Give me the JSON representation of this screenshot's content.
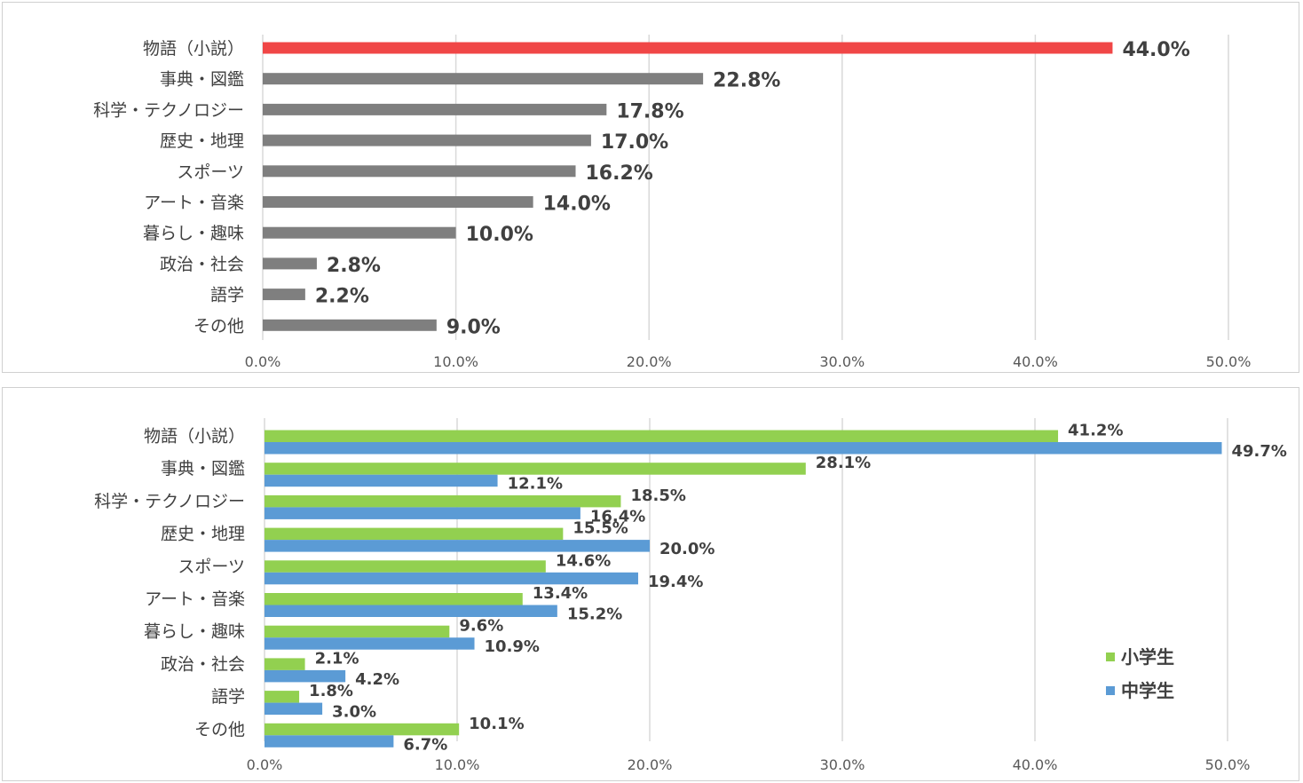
{
  "chart_data": [
    {
      "type": "bar",
      "orientation": "horizontal",
      "categories": [
        "物語（小説）",
        "事典・図鑑",
        "科学・テクノロジー",
        "歴史・地理",
        "スポーツ",
        "アート・音楽",
        "暮らし・趣味",
        "政治・社会",
        "語学",
        "その他"
      ],
      "values": [
        44.0,
        22.8,
        17.8,
        17.0,
        16.2,
        14.0,
        10.0,
        2.8,
        2.2,
        9.0
      ],
      "value_labels": [
        "44.0%",
        "22.8%",
        "17.8%",
        "17.0%",
        "16.2%",
        "14.0%",
        "10.0%",
        "2.8%",
        "2.2%",
        "9.0%"
      ],
      "highlight_index": 0,
      "colors": {
        "highlight": "#f04646",
        "default": "#7f7f7f"
      },
      "xlim": [
        0,
        50
      ],
      "xticks": [
        "0.0%",
        "10.0%",
        "20.0%",
        "30.0%",
        "40.0%",
        "50.0%"
      ],
      "grid": true
    },
    {
      "type": "bar",
      "orientation": "horizontal",
      "categories": [
        "物語（小説）",
        "事典・図鑑",
        "科学・テクノロジー",
        "歴史・地理",
        "スポーツ",
        "アート・音楽",
        "暮らし・趣味",
        "政治・社会",
        "語学",
        "その他"
      ],
      "series": [
        {
          "name": "小学生",
          "color": "#92d050",
          "values": [
            41.2,
            28.1,
            18.5,
            15.5,
            14.6,
            13.4,
            9.6,
            2.1,
            1.8,
            10.1
          ],
          "labels": [
            "41.2%",
            "28.1%",
            "18.5%",
            "15.5%",
            "14.6%",
            "13.4%",
            "9.6%",
            "2.1%",
            "1.8%",
            "10.1%"
          ]
        },
        {
          "name": "中学生",
          "color": "#5b9bd5",
          "values": [
            49.7,
            12.1,
            16.4,
            20.0,
            19.4,
            15.2,
            10.9,
            4.2,
            3.0,
            6.7
          ],
          "labels": [
            "49.7%",
            "12.1%",
            "16.4%",
            "20.0%",
            "19.4%",
            "15.2%",
            "10.9%",
            "4.2%",
            "3.0%",
            "6.7%"
          ]
        }
      ],
      "xlim": [
        0,
        50
      ],
      "xticks": [
        "0.0%",
        "10.0%",
        "20.0%",
        "30.0%",
        "40.0%",
        "50.0%"
      ],
      "grid": true,
      "legend_position": "bottom-right"
    }
  ]
}
